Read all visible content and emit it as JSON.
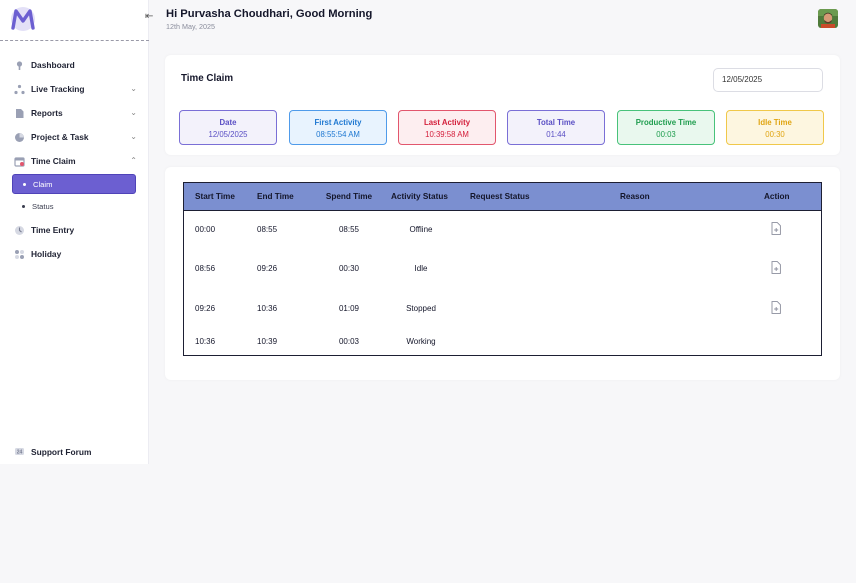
{
  "header": {
    "greeting": "Hi Purvasha Choudhari, Good Morning",
    "date": "12th May, 2025"
  },
  "sidebar": {
    "collapse_glyph": "⇤",
    "items": [
      {
        "label": "Dashboard",
        "icon": "dashboard-icon"
      },
      {
        "label": "Live Tracking",
        "icon": "live-tracking-icon",
        "chevron": "⌄"
      },
      {
        "label": "Reports",
        "icon": "reports-icon",
        "chevron": "⌄"
      },
      {
        "label": "Project & Task",
        "icon": "project-icon",
        "chevron": "⌄"
      },
      {
        "label": "Time Claim",
        "icon": "calendar-icon",
        "chevron": "⌃"
      },
      {
        "label": "Time Entry",
        "icon": "clock-icon"
      },
      {
        "label": "Holiday",
        "icon": "holiday-icon"
      }
    ],
    "sub_items": [
      {
        "label": "Claim",
        "active": true
      },
      {
        "label": "Status",
        "active": false
      }
    ],
    "support": "Support Forum"
  },
  "time_claim": {
    "title": "Time Claim",
    "date_value": "12/05/2025",
    "stats": [
      {
        "label": "Date",
        "value": "12/05/2025",
        "color": "#5a4fc4",
        "bg": "#f3f2fb",
        "border": "#7a6fd6"
      },
      {
        "label": "First Activity",
        "value": "08:55:54 AM",
        "color": "#1f78d1",
        "bg": "#e8f3fe",
        "border": "#4f9bea"
      },
      {
        "label": "Last Activity",
        "value": "10:39:58 AM",
        "color": "#d4213d",
        "bg": "#fdeef0",
        "border": "#e2566d"
      },
      {
        "label": "Total Time",
        "value": "01:44",
        "color": "#5a4fc4",
        "bg": "#f3f2fb",
        "border": "#7a6fd6"
      },
      {
        "label": "Productive Time",
        "value": "00:03",
        "color": "#1f9d4e",
        "bg": "#e9f8ee",
        "border": "#48c27a"
      },
      {
        "label": "Idle Time",
        "value": "00:30",
        "color": "#e0a512",
        "bg": "#fdf6e0",
        "border": "#f0c84a"
      }
    ]
  },
  "table": {
    "headers": {
      "start": "Start Time",
      "end": "End Time",
      "spend": "Spend Time",
      "activity": "Activity Status",
      "request": "Request Status",
      "reason": "Reason",
      "action": "Action"
    },
    "rows": [
      {
        "start": "00:00",
        "end": "08:55",
        "spend": "08:55",
        "activity": "Offline",
        "request": "",
        "reason": "",
        "has_action": true
      },
      {
        "start": "08:56",
        "end": "09:26",
        "spend": "00:30",
        "activity": "Idle",
        "request": "",
        "reason": "",
        "has_action": true
      },
      {
        "start": "09:26",
        "end": "10:36",
        "spend": "01:09",
        "activity": "Stopped",
        "request": "",
        "reason": "",
        "has_action": true
      },
      {
        "start": "10:36",
        "end": "10:39",
        "spend": "00:03",
        "activity": "Working",
        "request": "",
        "reason": "",
        "has_action": false
      }
    ],
    "action_icon": "add-file-icon"
  },
  "colors": {
    "accent": "#6c5fd1",
    "table_header": "#7b8fd0"
  }
}
